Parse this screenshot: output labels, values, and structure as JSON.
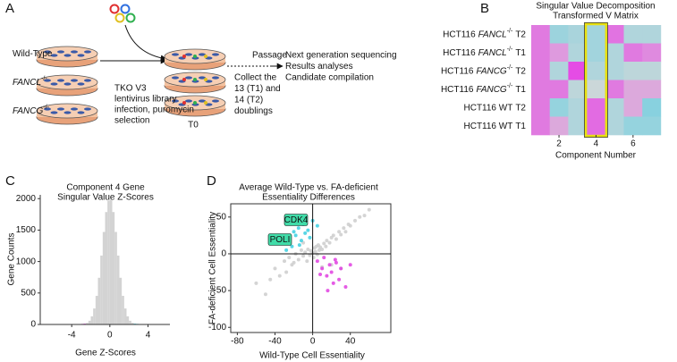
{
  "panel_a": {
    "label": "A",
    "rows": [
      {
        "name": "Wild-Type"
      },
      {
        "gene": "FANCL",
        "genotype": "-/-"
      },
      {
        "gene": "FANCG",
        "genotype": "-/-"
      }
    ],
    "infection": [
      "TKO V3",
      "lentivirus library",
      "infection, puromycin",
      "selection"
    ],
    "t0": "T0",
    "passage": "Passage",
    "collect": [
      "Collect the",
      "13 (T1) and",
      "14 (T2)",
      "doublings"
    ],
    "outputs": [
      "Next generation sequencing",
      "Results analyses",
      "Candidate compilation"
    ]
  },
  "panel_b": {
    "label": "B",
    "type": "heatmap",
    "title": [
      "Singular Value Decomposition",
      "Transformed V Matrix"
    ],
    "rows": [
      {
        "cell": "HCT116",
        "gene": "FANCL",
        "genotype": "-/-",
        "time": "T2"
      },
      {
        "cell": "HCT116",
        "gene": "FANCL",
        "genotype": "-/-",
        "time": "T1"
      },
      {
        "cell": "HCT116",
        "gene": "FANCG",
        "genotype": "-/-",
        "time": "T2"
      },
      {
        "cell": "HCT116",
        "gene": "FANCG",
        "genotype": "-/-",
        "time": "T1"
      },
      {
        "cell": "HCT116 WT",
        "time": "T2"
      },
      {
        "cell": "HCT116 WT",
        "time": "T1"
      }
    ],
    "values": [
      [
        0.6,
        -0.45,
        -0.35,
        -0.4,
        0.65,
        -0.3,
        -0.3
      ],
      [
        0.6,
        0.4,
        -0.3,
        -0.4,
        -0.3,
        0.6,
        0.5
      ],
      [
        0.6,
        -0.3,
        0.9,
        -0.3,
        -0.3,
        -0.2,
        -0.2
      ],
      [
        0.6,
        0.6,
        -0.2,
        -0.1,
        0.6,
        0.3,
        0.3
      ],
      [
        0.6,
        -0.5,
        -0.3,
        0.7,
        -0.3,
        0.3,
        -0.6
      ],
      [
        0.6,
        0.3,
        -0.3,
        0.7,
        -0.3,
        -0.5,
        -0.5
      ]
    ],
    "vlim": [
      -1,
      1
    ],
    "colors": {
      "low": "#52cde4",
      "mid": "#d8d8d8",
      "high": "#e63ce6"
    },
    "xlim": [
      0.5,
      7.5
    ],
    "xticks": [
      2,
      4,
      6
    ],
    "xlabel": "Component Number",
    "highlight_column": 4,
    "highlight_color": "#e8e010"
  },
  "panel_c": {
    "label": "C",
    "type": "histogram",
    "title": [
      "Component 4 Gene",
      "Singular Value Z-Scores"
    ],
    "bins": [
      -6,
      -5.75,
      -5.5,
      -5.25,
      -5,
      -4.75,
      -4.5,
      -4.25,
      -4,
      -3.75,
      -3.5,
      -3.25,
      -3,
      -2.75,
      -2.5,
      -2.25,
      -2,
      -1.75,
      -1.5,
      -1.25,
      -1,
      -0.75,
      -0.5,
      -0.25,
      0,
      0.25,
      0.5,
      0.75,
      1,
      1.25,
      1.5,
      1.75,
      2,
      2.25,
      2.5,
      2.75,
      3,
      3.25,
      3.5,
      3.75,
      4,
      4.25,
      4.5,
      4.75,
      5,
      5.25,
      5.5,
      5.75,
      6
    ],
    "counts": [
      1,
      0,
      1,
      1,
      2,
      1,
      2,
      3,
      3,
      4,
      5,
      7,
      9,
      12,
      24,
      59,
      129,
      254,
      455,
      742,
      1095,
      1470,
      1787,
      1970,
      1985,
      1787,
      1470,
      1095,
      742,
      455,
      254,
      129,
      59,
      24,
      12,
      9,
      7,
      5,
      4,
      3,
      3,
      2,
      1,
      2,
      1,
      1,
      0,
      1
    ],
    "colors": [
      "#e040e0",
      "#e040e0",
      "#e040e0",
      "#e040e0",
      "#e040e0",
      "#e040e0",
      "#e040e0",
      "#e040e0",
      "#e040e0",
      "#e040e0",
      "#e040e0",
      "#e040e0",
      "#e040e0",
      "#e040e0",
      "#d3d3d3",
      "#d3d3d3",
      "#d3d3d3",
      "#d3d3d3",
      "#d3d3d3",
      "#d3d3d3",
      "#d3d3d3",
      "#d3d3d3",
      "#d3d3d3",
      "#d3d3d3",
      "#d3d3d3",
      "#d3d3d3",
      "#d3d3d3",
      "#d3d3d3",
      "#d3d3d3",
      "#d3d3d3",
      "#d3d3d3",
      "#d3d3d3",
      "#d3d3d3",
      "#d3d3d3",
      "#40d0e0",
      "#40d0e0",
      "#40d0e0",
      "#40d0e0",
      "#40d0e0",
      "#40d0e0",
      "#40d0e0",
      "#40d0e0",
      "#40d0e0",
      "#40d0e0",
      "#40d0e0",
      "#40d0e0",
      "#40d0e0",
      "#40d0e0"
    ],
    "xlim": [
      -7.3,
      6.3
    ],
    "xticks": [
      -4,
      0,
      4
    ],
    "ylim": [
      0,
      2060
    ],
    "yticks": [
      0,
      500,
      1000,
      1500,
      2000
    ],
    "xlabel": "Gene Z-Scores",
    "ylabel": "Gene Counts"
  },
  "panel_d": {
    "label": "D",
    "type": "scatter",
    "title": [
      "Average Wild-Type vs. FA-deficient",
      "Essentiality Differences"
    ],
    "series": [
      {
        "color": "#cccccc",
        "x": [
          -40,
          -35,
          -30,
          -28,
          -25,
          -22,
          -20,
          -18,
          -15,
          -12,
          -10,
          -8,
          -6,
          -5,
          -3,
          -2,
          0,
          1,
          2,
          3,
          4,
          5,
          6,
          7,
          8,
          10,
          12,
          14,
          15,
          18,
          20,
          22,
          25,
          28,
          30,
          33,
          35,
          38,
          40,
          45,
          50,
          55,
          60,
          -60,
          -50,
          -45,
          20,
          30,
          10,
          -10
        ],
        "y": [
          -20,
          -30,
          -10,
          -25,
          -5,
          -15,
          -12,
          0,
          -8,
          5,
          -3,
          2,
          -10,
          6,
          -2,
          4,
          1,
          -5,
          8,
          3,
          10,
          -1,
          12,
          5,
          9,
          6,
          14,
          10,
          18,
          15,
          22,
          25,
          20,
          30,
          26,
          35,
          30,
          40,
          38,
          45,
          50,
          52,
          60,
          -40,
          -55,
          -35,
          -15,
          -20,
          -18,
          15
        ]
      },
      {
        "color": "#3ccfe0",
        "x": [
          -30,
          -25,
          -22,
          -20,
          -18,
          -15,
          -12,
          -10,
          -8,
          -5,
          -3,
          0,
          5,
          -28,
          -14
        ],
        "y": [
          15,
          20,
          10,
          30,
          25,
          35,
          18,
          40,
          28,
          32,
          22,
          45,
          38,
          5,
          12
        ]
      },
      {
        "color": "#e040e0",
        "x": [
          5,
          10,
          12,
          15,
          18,
          20,
          22,
          25,
          28,
          30,
          35,
          8,
          40,
          16,
          24
        ],
        "y": [
          -10,
          -20,
          -5,
          -30,
          -15,
          -25,
          -40,
          -12,
          -35,
          -20,
          -45,
          -28,
          -15,
          -50,
          -8
        ]
      }
    ],
    "annotations": [
      "CDK4",
      "POLI"
    ],
    "annotation_color": "#40dca8",
    "xlim": [
      -87,
      83
    ],
    "xticks": [
      -80,
      -40,
      0,
      40
    ],
    "ylim": [
      -107,
      68
    ],
    "yticks": [
      50,
      0,
      -50,
      -100
    ],
    "xlabel": "Wild-Type Cell Essentiality",
    "ylabel": "FA-deficient Cell Essentiality"
  }
}
